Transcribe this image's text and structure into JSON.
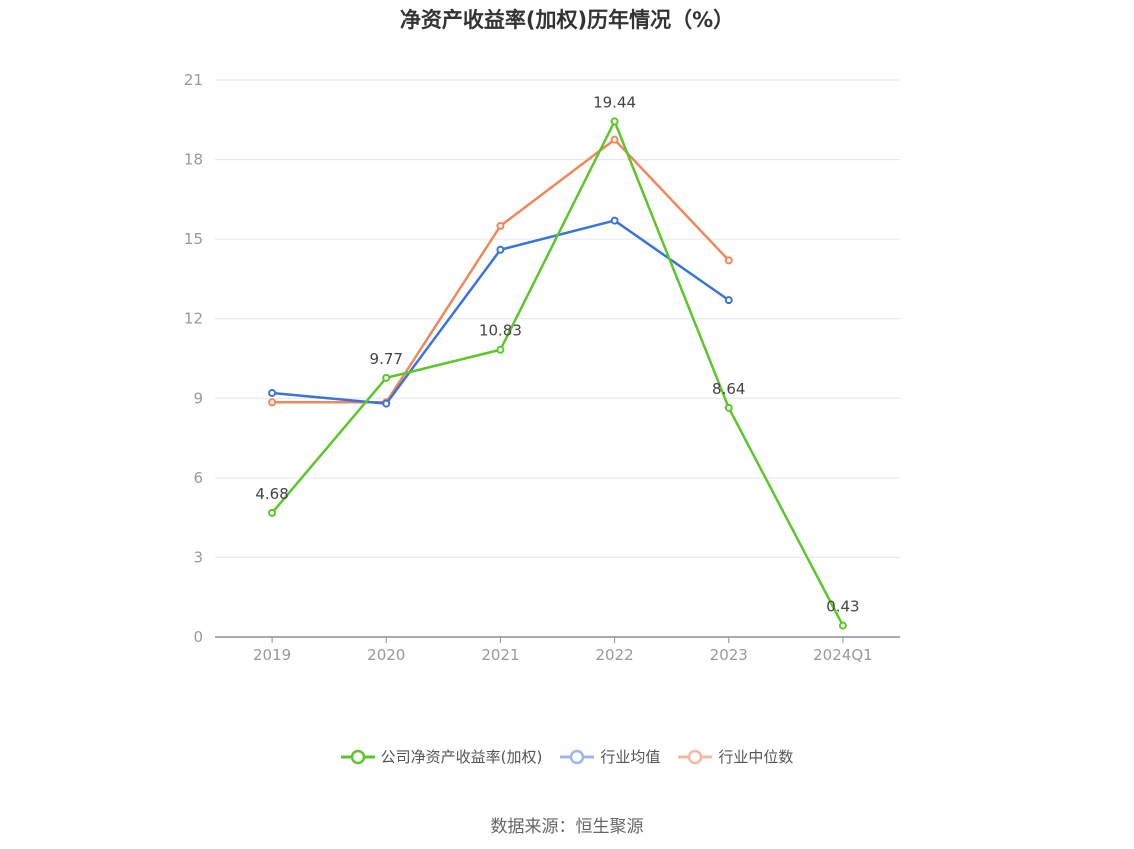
{
  "chart_data": {
    "type": "line",
    "title": "净资产收益率(加权)历年情况（%）",
    "categories": [
      "2019",
      "2020",
      "2021",
      "2022",
      "2023",
      "2024Q1"
    ],
    "ylim": [
      0,
      21
    ],
    "yticks": [
      0,
      3,
      6,
      9,
      12,
      15,
      18,
      21
    ],
    "grid": true,
    "legend_position": "bottom",
    "series": [
      {
        "name": "公司净资产收益率(加权)",
        "color": "#5cc72c",
        "show_labels": true,
        "values": [
          4.68,
          9.77,
          10.83,
          19.44,
          8.64,
          0.43
        ]
      },
      {
        "name": "行业均值",
        "color": "#3a74d9",
        "show_labels": false,
        "values": [
          9.2,
          8.8,
          14.6,
          15.7,
          12.7,
          null
        ]
      },
      {
        "name": "行业中位数",
        "color": "#f0885a",
        "show_labels": false,
        "values": [
          8.85,
          8.85,
          15.5,
          18.75,
          14.2,
          null
        ]
      }
    ]
  },
  "legend": {
    "items": [
      {
        "label": "公司净资产收益率(加权)",
        "color": "#5cc72c",
        "faded": false
      },
      {
        "label": "行业均值",
        "color": "#9bb8ea",
        "faded": true
      },
      {
        "label": "行业中位数",
        "color": "#f5b8a0",
        "faded": true
      }
    ]
  },
  "source_note": "数据来源：恒生聚源"
}
